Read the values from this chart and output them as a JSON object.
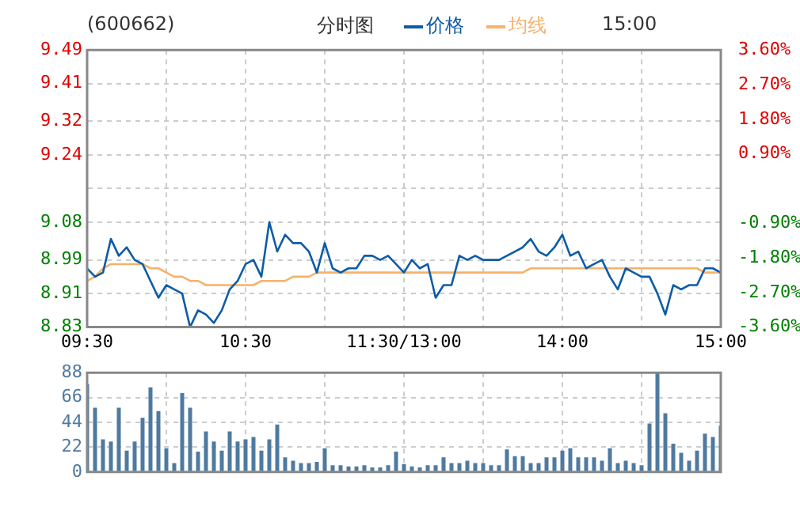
{
  "chart_data": [
    {
      "type": "line",
      "title": "(600662)",
      "subtitle": "分时图",
      "annotations": [
        "15:00"
      ],
      "legend": "top",
      "grid": true,
      "marker": "none",
      "categories": [
        "09:30",
        null,
        null,
        null,
        null,
        null,
        null,
        null,
        null,
        null,
        null,
        null,
        null,
        null,
        null,
        null,
        null,
        null,
        null,
        null,
        "10:30",
        null,
        null,
        null,
        null,
        null,
        null,
        null,
        null,
        null,
        null,
        null,
        null,
        null,
        null,
        null,
        null,
        null,
        null,
        null,
        "11:30/13:00",
        null,
        null,
        null,
        null,
        null,
        null,
        null,
        null,
        null,
        null,
        null,
        null,
        null,
        null,
        null,
        null,
        null,
        null,
        null,
        "14:00",
        null,
        null,
        null,
        null,
        null,
        null,
        null,
        null,
        null,
        null,
        null,
        null,
        null,
        null,
        null,
        null,
        null,
        null,
        null,
        "15:00"
      ],
      "ylim": [
        8.83,
        9.49
      ],
      "yticks": [
        8.83,
        8.91,
        8.99,
        9.08,
        {
          "value": 9.16,
          "label": null
        },
        9.24,
        9.32,
        9.41,
        9.49
      ],
      "y2lim": [
        -3.6,
        3.6
      ],
      "y2ticks": [
        {
          "value": -3.6,
          "label": "-3.60%"
        },
        {
          "value": -2.7,
          "label": "-2.70%"
        },
        {
          "value": -1.8,
          "label": "-1.80%"
        },
        {
          "value": -0.9,
          "label": "-0.90%"
        },
        {
          "value": 0,
          "label": null
        },
        {
          "value": 0.9,
          "label": "0.90%"
        },
        {
          "value": 1.8,
          "label": "1.80%"
        },
        {
          "value": 2.7,
          "label": "2.70%"
        },
        {
          "value": 3.6,
          "label": "3.60%"
        }
      ],
      "series": [
        {
          "name": "价格",
          "color": "#0d5ca8",
          "values": [
            8.97,
            8.95,
            8.96,
            9.04,
            9.0,
            9.02,
            8.99,
            8.98,
            8.94,
            8.9,
            8.93,
            8.92,
            8.91,
            8.83,
            8.87,
            8.86,
            8.84,
            8.87,
            8.92,
            8.94,
            8.98,
            8.99,
            8.95,
            9.08,
            9.01,
            9.05,
            9.03,
            9.03,
            9.01,
            8.96,
            9.03,
            8.97,
            8.96,
            8.97,
            8.97,
            9.0,
            9.0,
            8.99,
            9.0,
            8.98,
            8.96,
            8.99,
            8.97,
            8.98,
            8.9,
            8.93,
            8.93,
            9.0,
            8.99,
            9.0,
            8.99,
            8.99,
            8.99,
            9.0,
            9.01,
            9.02,
            9.04,
            9.01,
            9.0,
            9.02,
            9.05,
            9.0,
            9.01,
            8.97,
            8.98,
            8.99,
            8.95,
            8.92,
            8.97,
            8.96,
            8.95,
            8.95,
            8.91,
            8.86,
            8.93,
            8.92,
            8.93,
            8.93,
            8.97,
            8.97,
            8.96
          ]
        },
        {
          "name": "均线",
          "color": "#f5b26b",
          "values": [
            8.94,
            8.95,
            8.97,
            8.98,
            8.98,
            8.98,
            8.98,
            8.98,
            8.97,
            8.97,
            8.96,
            8.95,
            8.95,
            8.94,
            8.94,
            8.93,
            8.93,
            8.93,
            8.93,
            8.93,
            8.93,
            8.93,
            8.94,
            8.94,
            8.94,
            8.94,
            8.95,
            8.95,
            8.95,
            8.96,
            8.96,
            8.96,
            8.96,
            8.96,
            8.96,
            8.96,
            8.96,
            8.96,
            8.96,
            8.96,
            8.96,
            8.96,
            8.96,
            8.96,
            8.96,
            8.96,
            8.96,
            8.96,
            8.96,
            8.96,
            8.96,
            8.96,
            8.96,
            8.96,
            8.96,
            8.96,
            8.97,
            8.97,
            8.97,
            8.97,
            8.97,
            8.97,
            8.97,
            8.97,
            8.97,
            8.97,
            8.97,
            8.97,
            8.97,
            8.97,
            8.97,
            8.97,
            8.97,
            8.97,
            8.97,
            8.97,
            8.97,
            8.97,
            8.96,
            8.96,
            8.96
          ]
        }
      ]
    },
    {
      "type": "bar",
      "grid": true,
      "tick_labels": "y",
      "color": "#4f7aa0",
      "categories": [
        null,
        null,
        null,
        null,
        null,
        null,
        null,
        null,
        null,
        null,
        null,
        null,
        null,
        null,
        null,
        null,
        null,
        null,
        null,
        null,
        null,
        null,
        null,
        null,
        null,
        null,
        null,
        null,
        null,
        null,
        null,
        null,
        null,
        null,
        null,
        null,
        null,
        null,
        null,
        null,
        null,
        null,
        null,
        null,
        null,
        null,
        null,
        null,
        null,
        null,
        null,
        null,
        null,
        null,
        null,
        null,
        null,
        null,
        null,
        null,
        null,
        null,
        null,
        null,
        null,
        null,
        null,
        null,
        null,
        null,
        null,
        null,
        null,
        null,
        null,
        null,
        null,
        null,
        null,
        null,
        null
      ],
      "ylim": [
        0,
        88
      ],
      "yticks": [
        0,
        22,
        44,
        66,
        88
      ],
      "values": [
        78,
        57,
        29,
        27,
        57,
        19,
        27,
        48,
        75,
        54,
        21,
        8,
        70,
        57,
        18,
        36,
        27,
        19,
        36,
        27,
        29,
        31,
        19,
        29,
        42,
        13,
        10,
        8,
        8,
        9,
        21,
        6,
        6,
        5,
        5,
        6,
        4,
        4,
        6,
        18,
        7,
        5,
        4,
        6,
        6,
        13,
        8,
        8,
        10,
        8,
        8,
        6,
        6,
        20,
        14,
        14,
        8,
        8,
        13,
        13,
        19,
        21,
        13,
        13,
        13,
        10,
        21,
        8,
        10,
        8,
        6,
        43,
        88,
        52,
        25,
        17,
        10,
        19,
        34,
        31,
        41
      ]
    }
  ]
}
